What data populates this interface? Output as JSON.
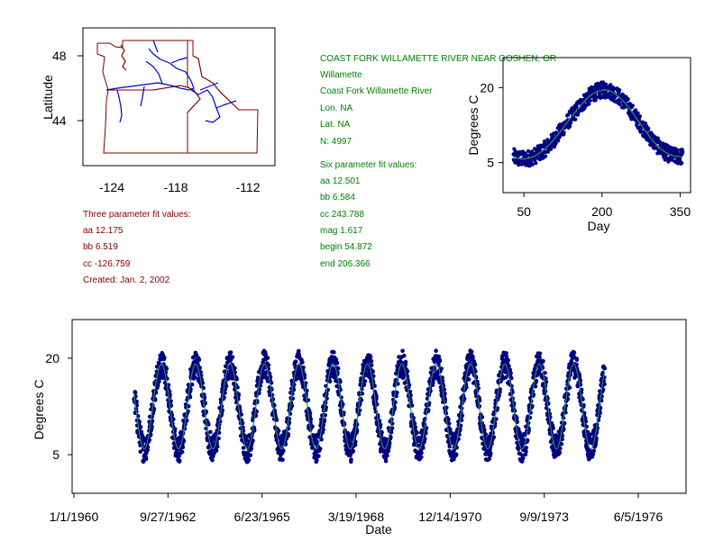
{
  "map": {
    "ylabel": "Latitude",
    "lat_ticks": [
      "48",
      "44"
    ],
    "lon_ticks": [
      "-124",
      "-118",
      "-112"
    ],
    "border_color": "#800000",
    "river_color": "#0000cc"
  },
  "station": {
    "title": "COAST FORK WILLAMETTE RIVER NEAR GOSHEN, OR",
    "basin": "Willamette",
    "river": "Coast Fork Willamette River",
    "lon": "Lon. NA",
    "lat": "Lat. NA",
    "n": "N: 4997",
    "six_header": "Six parameter fit values:",
    "six": [
      "aa 12.501",
      "bb 6.584",
      "cc 243.788",
      "mag 1.617",
      "begin 54.872",
      "end 206.366"
    ],
    "color": "#008000"
  },
  "three": {
    "header": "Three parameter fit values:",
    "values": [
      "aa 12.175",
      "bb 6.519",
      "cc -126.759"
    ],
    "created": "Created:   Jan. 2, 2002",
    "color": "#800000"
  },
  "chart_data": [
    {
      "type": "scatter",
      "xlabel": "Day",
      "ylabel": "Degrees C",
      "x_ticks": [
        50,
        200,
        350
      ],
      "y_ticks": [
        5,
        20
      ],
      "xlim": [
        10,
        370
      ],
      "ylim": [
        -1,
        26
      ],
      "point_color": "#000080",
      "fit_color": "#2e8b57",
      "series": [
        {
          "x": [
            30,
            40,
            50,
            60,
            70,
            80,
            90,
            100,
            110,
            120,
            130,
            140,
            150,
            160,
            170,
            180,
            190,
            200,
            210,
            220,
            230,
            240,
            250,
            260,
            270,
            280,
            290,
            300,
            310,
            320,
            330,
            340,
            350,
            355
          ],
          "y": [
            6.2,
            5.8,
            5.7,
            5.9,
            6.3,
            6.9,
            7.7,
            8.7,
            9.9,
            11.2,
            12.6,
            14.0,
            15.3,
            16.6,
            17.7,
            18.6,
            19.2,
            19.5,
            19.5,
            19.1,
            18.4,
            17.4,
            16.2,
            14.8,
            13.3,
            11.8,
            10.4,
            9.1,
            8.0,
            7.2,
            6.6,
            6.3,
            6.2,
            6.2
          ]
        }
      ]
    },
    {
      "type": "scatter",
      "xlabel": "Date",
      "ylabel": "Degrees C",
      "x_ticks": [
        "1/1/1960",
        "9/27/1962",
        "6/23/1965",
        "3/19/1968",
        "12/14/1970",
        "9/9/1973",
        "6/5/1976"
      ],
      "y_ticks": [
        5,
        20
      ],
      "ylim": [
        -1,
        26
      ],
      "data_range": [
        "1961-10-01",
        "1975-06-15"
      ],
      "point_color": "#000080",
      "fit_color": "#2e8b57",
      "annual_cycle": {
        "mean": 12.5,
        "amplitude": 6.6,
        "peak_day": 200
      }
    }
  ]
}
